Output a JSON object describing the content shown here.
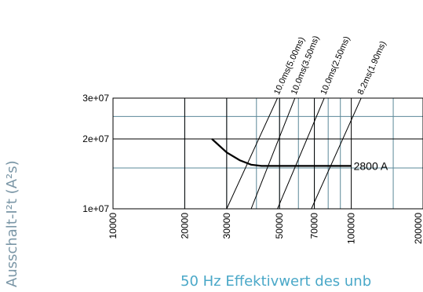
{
  "chart_data": {
    "type": "line",
    "title": "",
    "xlabel": "50 Hz Effektivwert des unb",
    "ylabel": "Ausschalt-I²t (A²s)",
    "x_scale": "log",
    "y_scale": "log",
    "xlim": [
      10000,
      200000
    ],
    "ylim": [
      10000000,
      30000000
    ],
    "x_ticks": [
      10000,
      20000,
      30000,
      50000,
      70000,
      100000,
      200000
    ],
    "x_tick_labels": [
      "10000",
      "20000",
      "30000",
      "50000",
      "70000",
      "100000",
      "200000"
    ],
    "y_ticks": [
      10000000,
      20000000,
      30000000
    ],
    "y_tick_labels": [
      "1e+07",
      "2e+07",
      "3e+07"
    ],
    "grid": true,
    "series": [
      {
        "name": "2800 A",
        "x": [
          26000,
          30000,
          34000,
          38000,
          42000,
          50000,
          70000,
          100000
        ],
        "y": [
          20000000,
          17500000,
          16200000,
          15500000,
          15300000,
          15300000,
          15300000,
          15300000
        ]
      }
    ],
    "reference_lines": [
      {
        "label": "10.0ms(5.00ms)",
        "x": [
          30000,
          49000
        ],
        "y": [
          10000000,
          30000000
        ]
      },
      {
        "label": "10.0ms(3.50ms)",
        "x": [
          38000,
          58000
        ],
        "y": [
          10000000,
          30000000
        ]
      },
      {
        "label": "10.0ms(2.50ms)",
        "x": [
          49000,
          77000
        ],
        "y": [
          10000000,
          30000000
        ]
      },
      {
        "label": "8.2ms(1.90ms)",
        "x": [
          68000,
          110000
        ],
        "y": [
          10000000,
          30000000
        ]
      }
    ]
  }
}
